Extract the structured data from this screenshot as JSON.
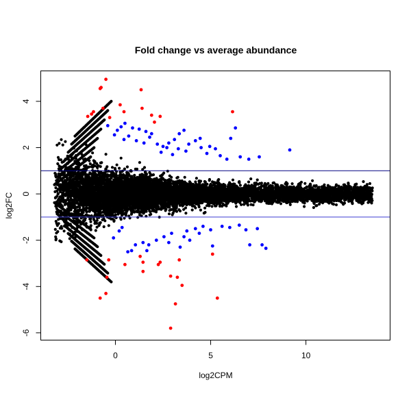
{
  "chart_data": {
    "type": "scatter",
    "title": "Fold change vs average abundance",
    "xlabel": "log2CPM",
    "ylabel": "log2FC",
    "xlim": [
      -3.9,
      14.4
    ],
    "ylim": [
      -6.3,
      5.3
    ],
    "x_ticks": [
      0,
      5,
      10
    ],
    "y_ticks": [
      -6,
      -4,
      -2,
      0,
      2,
      4
    ],
    "grid": false,
    "legend": "none",
    "hlines": [
      {
        "y": 1,
        "color": "#000080"
      },
      {
        "y": -1,
        "color": "#3b3bd0"
      }
    ],
    "colors": {
      "not_significant": "#000000",
      "significant": "#0000ff",
      "highly_significant": "#ff0000"
    },
    "series": [
      {
        "group": "highly_significant",
        "color": "#ff0000",
        "points": [
          [
            -0.5,
            4.95
          ],
          [
            -0.8,
            4.55
          ],
          [
            -0.75,
            4.6
          ],
          [
            1.35,
            4.5
          ],
          [
            0.25,
            3.85
          ],
          [
            0.45,
            3.55
          ],
          [
            1.4,
            3.7
          ],
          [
            -0.65,
            3.7
          ],
          [
            -1.15,
            3.55
          ],
          [
            -1.45,
            3.35
          ],
          [
            -1.25,
            3.45
          ],
          [
            -0.3,
            3.3
          ],
          [
            1.9,
            3.4
          ],
          [
            2.35,
            3.35
          ],
          [
            2.05,
            3.1
          ],
          [
            6.15,
            3.55
          ],
          [
            -0.35,
            -2.85
          ],
          [
            -1.5,
            -2.85
          ],
          [
            0.5,
            -3.05
          ],
          [
            1.45,
            -2.95
          ],
          [
            1.3,
            -2.7
          ],
          [
            3.35,
            -2.85
          ],
          [
            2.35,
            -2.95
          ],
          [
            2.25,
            -3.05
          ],
          [
            1.45,
            -3.35
          ],
          [
            2.9,
            -3.55
          ],
          [
            3.25,
            -3.6
          ],
          [
            5.1,
            -2.6
          ],
          [
            -0.45,
            -3.6
          ],
          [
            3.5,
            -3.95
          ],
          [
            -0.8,
            -4.5
          ],
          [
            -0.5,
            -4.3
          ],
          [
            5.35,
            -4.5
          ],
          [
            3.15,
            -4.75
          ],
          [
            2.9,
            -5.8
          ]
        ]
      },
      {
        "group": "significant",
        "color": "#0000ff",
        "points": [
          [
            -0.4,
            2.95
          ],
          [
            0.1,
            2.75
          ],
          [
            0.3,
            2.9
          ],
          [
            0.5,
            3.05
          ],
          [
            0.9,
            2.85
          ],
          [
            1.25,
            2.8
          ],
          [
            1.6,
            2.7
          ],
          [
            1.9,
            2.6
          ],
          [
            0.7,
            2.5
          ],
          [
            1.1,
            2.3
          ],
          [
            1.5,
            2.2
          ],
          [
            1.8,
            2.45
          ],
          [
            2.2,
            2.15
          ],
          [
            2.5,
            2.05
          ],
          [
            2.8,
            2.2
          ],
          [
            3.1,
            2.35
          ],
          [
            3.35,
            2.6
          ],
          [
            3.6,
            2.75
          ],
          [
            3.85,
            2.15
          ],
          [
            4.2,
            2.3
          ],
          [
            4.5,
            2.0
          ],
          [
            4.8,
            1.75
          ],
          [
            3.3,
            1.95
          ],
          [
            3.7,
            1.85
          ],
          [
            2.7,
            2.0
          ],
          [
            2.4,
            1.8
          ],
          [
            4.95,
            2.05
          ],
          [
            5.25,
            1.95
          ],
          [
            5.5,
            1.65
          ],
          [
            5.85,
            1.5
          ],
          [
            6.05,
            2.4
          ],
          [
            6.3,
            2.85
          ],
          [
            6.55,
            1.6
          ],
          [
            7.0,
            1.5
          ],
          [
            7.55,
            1.6
          ],
          [
            9.15,
            1.9
          ],
          [
            4.45,
            2.4
          ],
          [
            3.0,
            1.7
          ],
          [
            0.45,
            2.35
          ],
          [
            -0.05,
            2.55
          ],
          [
            0.35,
            -1.45
          ],
          [
            0.85,
            -2.45
          ],
          [
            0.65,
            -2.5
          ],
          [
            1.05,
            -2.2
          ],
          [
            1.45,
            -2.1
          ],
          [
            1.75,
            -2.2
          ],
          [
            2.15,
            -2.0
          ],
          [
            2.55,
            -1.85
          ],
          [
            2.95,
            -1.7
          ],
          [
            3.4,
            -2.3
          ],
          [
            3.6,
            -1.85
          ],
          [
            3.75,
            -1.6
          ],
          [
            4.2,
            -1.5
          ],
          [
            4.6,
            -1.4
          ],
          [
            5.0,
            -1.55
          ],
          [
            5.1,
            -2.25
          ],
          [
            5.6,
            -1.4
          ],
          [
            6.0,
            -1.45
          ],
          [
            6.5,
            -1.35
          ],
          [
            6.85,
            -1.55
          ],
          [
            7.05,
            -2.2
          ],
          [
            7.45,
            -1.5
          ],
          [
            7.7,
            -2.2
          ],
          [
            7.9,
            -2.35
          ],
          [
            1.65,
            -2.45
          ],
          [
            0.2,
            -1.6
          ],
          [
            -0.1,
            -1.9
          ],
          [
            2.8,
            -2.1
          ],
          [
            3.9,
            -2.0
          ],
          [
            4.4,
            -1.7
          ]
        ]
      }
    ],
    "background_cloud": {
      "group": "not_significant",
      "color": "#000000",
      "n_points": 9000,
      "x_range": [
        -3.2,
        13.5
      ],
      "x_peak": 1.4
    }
  }
}
